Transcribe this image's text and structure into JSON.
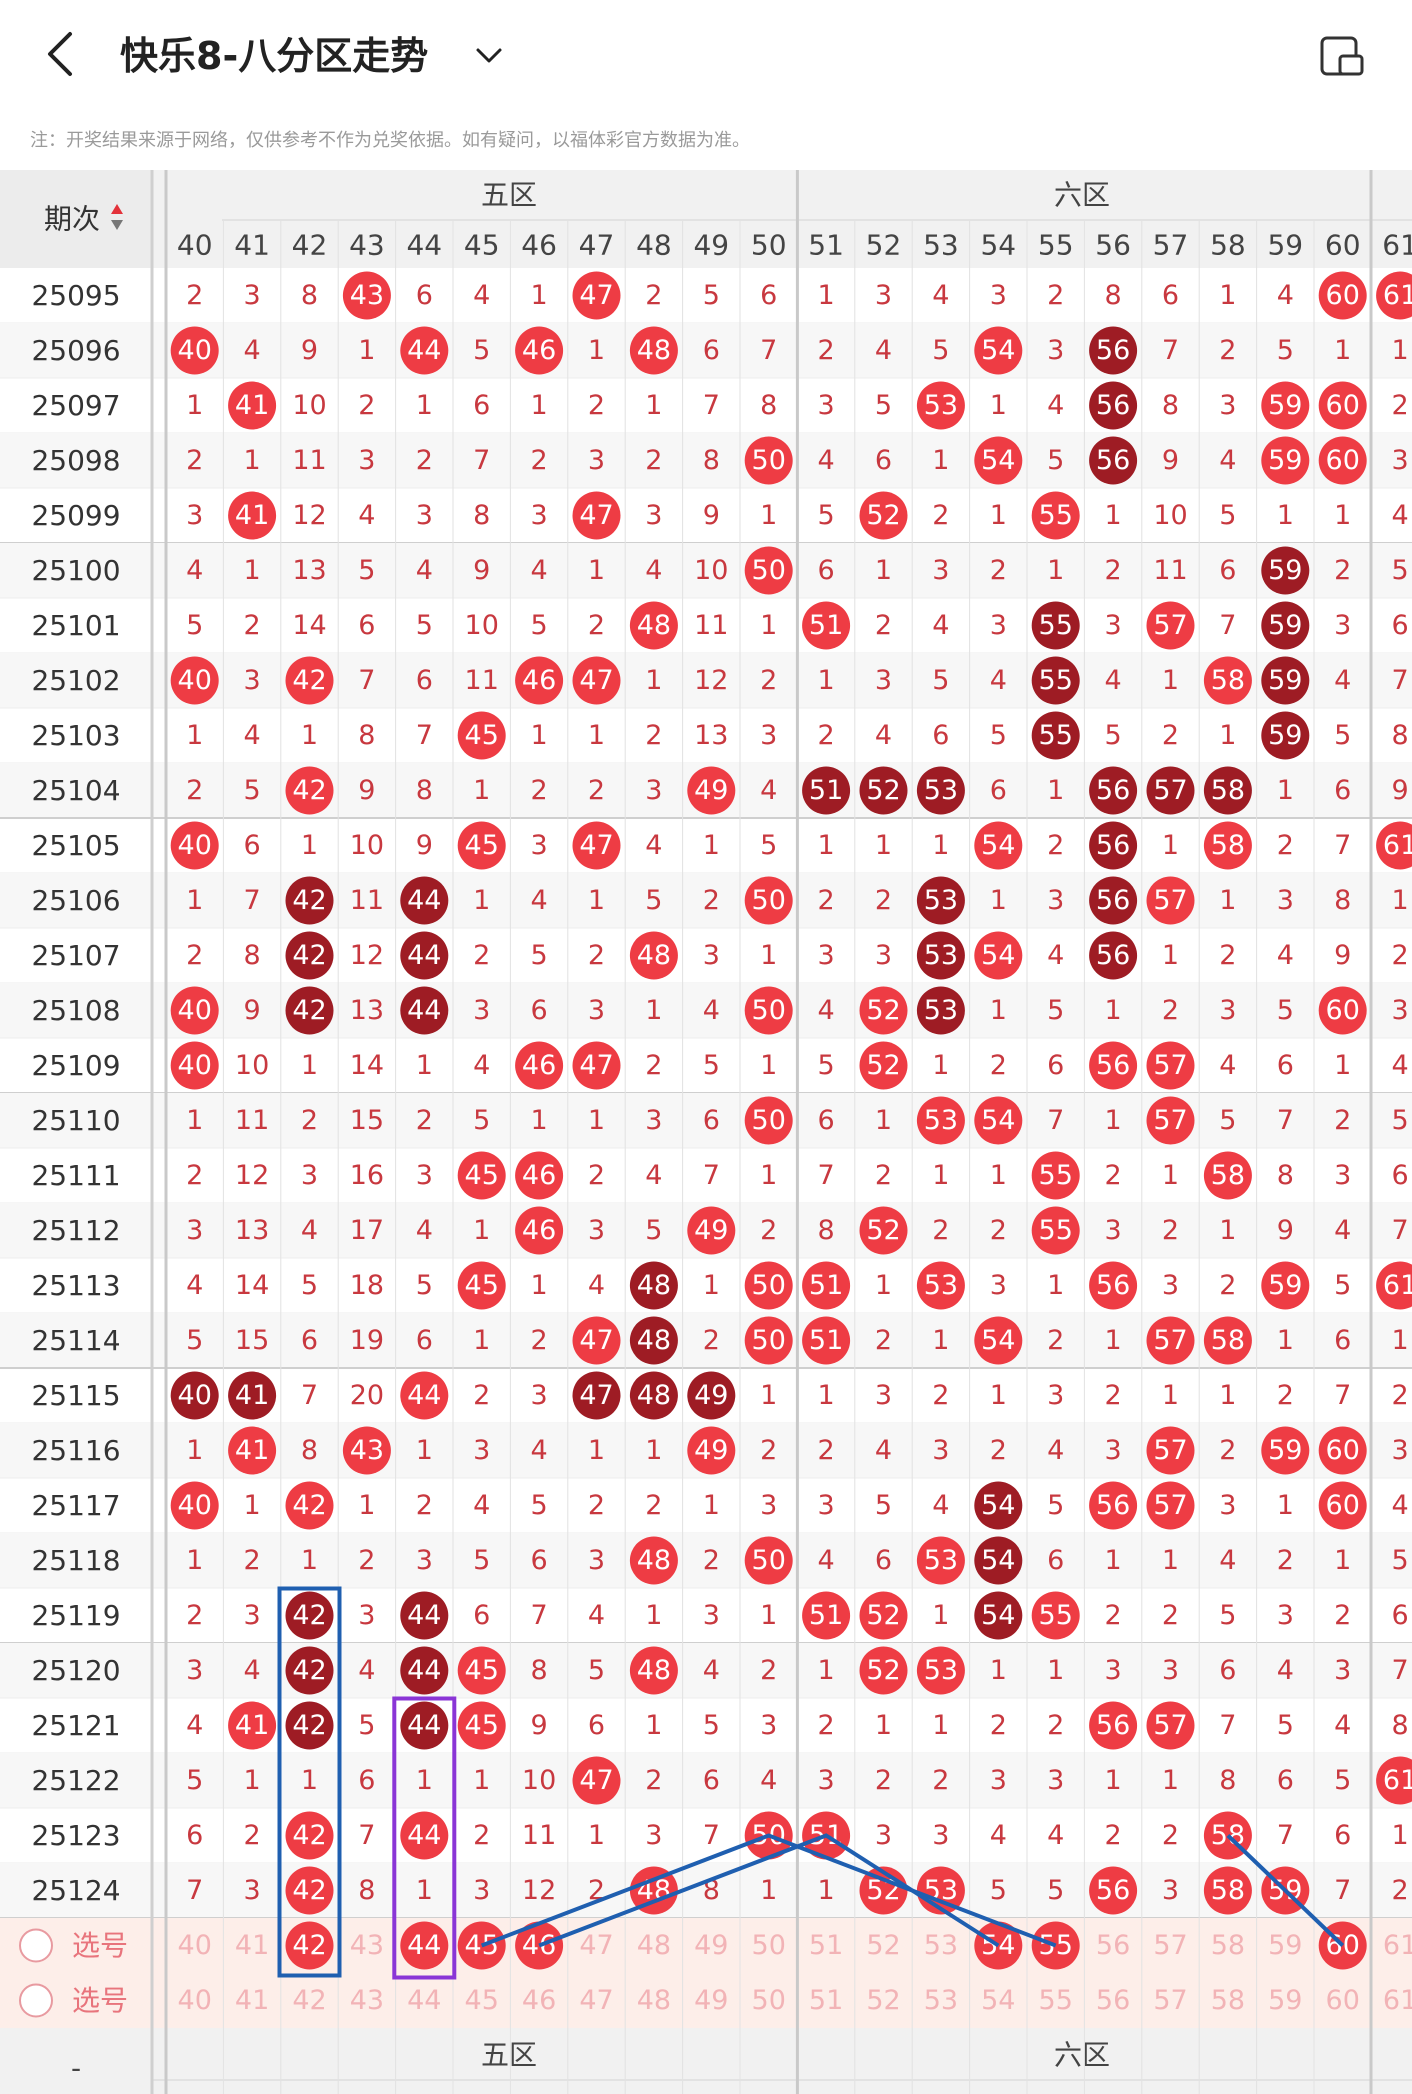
{
  "header": {
    "title": "快乐8-八分区走势",
    "note": "注：开奖结果来源于网络，仅供参考不作为兑奖依据。如有疑问，以福体彩官方数据为准。"
  },
  "table": {
    "period_header": "期次",
    "zone_labels": [
      "五区",
      "六区"
    ],
    "numbers": [
      40,
      41,
      42,
      43,
      44,
      45,
      46,
      47,
      48,
      49,
      50,
      51,
      52,
      53,
      54,
      55,
      56,
      57,
      58,
      59,
      60,
      61
    ],
    "rows": [
      {
        "p": "25095",
        "v": [
          2,
          3,
          8,
          43,
          6,
          4,
          1,
          47,
          2,
          5,
          6,
          1,
          3,
          4,
          3,
          2,
          8,
          6,
          1,
          4,
          60,
          61
        ]
      },
      {
        "p": "25096",
        "v": [
          40,
          4,
          9,
          1,
          44,
          5,
          46,
          1,
          48,
          6,
          7,
          2,
          4,
          5,
          54,
          3,
          56,
          7,
          2,
          5,
          1,
          1
        ]
      },
      {
        "p": "25097",
        "v": [
          1,
          41,
          10,
          2,
          1,
          6,
          1,
          2,
          1,
          7,
          8,
          3,
          5,
          53,
          1,
          4,
          56,
          8,
          3,
          59,
          60,
          2
        ]
      },
      {
        "p": "25098",
        "v": [
          2,
          1,
          11,
          3,
          2,
          7,
          2,
          3,
          2,
          8,
          50,
          4,
          6,
          1,
          54,
          5,
          56,
          9,
          4,
          59,
          60,
          3
        ]
      },
      {
        "p": "25099",
        "v": [
          3,
          41,
          12,
          4,
          3,
          8,
          3,
          47,
          3,
          9,
          1,
          5,
          52,
          2,
          1,
          55,
          1,
          10,
          5,
          1,
          1,
          4
        ]
      },
      {
        "p": "25100",
        "v": [
          4,
          1,
          13,
          5,
          4,
          9,
          4,
          1,
          4,
          10,
          50,
          6,
          1,
          3,
          2,
          1,
          2,
          11,
          6,
          59,
          2,
          5
        ]
      },
      {
        "p": "25101",
        "v": [
          5,
          2,
          14,
          6,
          5,
          10,
          5,
          2,
          48,
          11,
          1,
          51,
          2,
          4,
          3,
          55,
          3,
          57,
          7,
          59,
          3,
          6
        ]
      },
      {
        "p": "25102",
        "v": [
          40,
          3,
          42,
          7,
          6,
          11,
          46,
          47,
          1,
          12,
          2,
          1,
          3,
          5,
          4,
          55,
          4,
          1,
          58,
          59,
          4,
          7
        ]
      },
      {
        "p": "25103",
        "v": [
          1,
          4,
          1,
          8,
          7,
          45,
          1,
          1,
          2,
          13,
          3,
          2,
          4,
          6,
          5,
          55,
          5,
          2,
          1,
          59,
          5,
          8
        ]
      },
      {
        "p": "25104",
        "v": [
          2,
          5,
          42,
          9,
          8,
          1,
          2,
          2,
          3,
          49,
          4,
          51,
          52,
          53,
          6,
          1,
          56,
          57,
          58,
          1,
          6,
          9
        ]
      },
      {
        "p": "25105",
        "v": [
          40,
          6,
          1,
          10,
          9,
          45,
          3,
          47,
          4,
          1,
          5,
          1,
          1,
          1,
          54,
          2,
          56,
          1,
          58,
          2,
          7,
          61
        ]
      },
      {
        "p": "25106",
        "v": [
          1,
          7,
          42,
          11,
          44,
          1,
          4,
          1,
          5,
          2,
          50,
          2,
          2,
          53,
          1,
          3,
          56,
          57,
          1,
          3,
          8,
          1
        ]
      },
      {
        "p": "25107",
        "v": [
          2,
          8,
          42,
          12,
          44,
          2,
          5,
          2,
          48,
          3,
          1,
          3,
          3,
          53,
          54,
          4,
          56,
          1,
          2,
          4,
          9,
          2
        ]
      },
      {
        "p": "25108",
        "v": [
          40,
          9,
          42,
          13,
          44,
          3,
          6,
          3,
          1,
          4,
          50,
          4,
          52,
          53,
          1,
          5,
          1,
          2,
          3,
          5,
          60,
          3
        ]
      },
      {
        "p": "25109",
        "v": [
          40,
          10,
          1,
          14,
          1,
          4,
          46,
          47,
          2,
          5,
          1,
          5,
          52,
          1,
          2,
          6,
          56,
          57,
          4,
          6,
          1,
          4
        ]
      },
      {
        "p": "25110",
        "v": [
          1,
          11,
          2,
          15,
          2,
          5,
          1,
          1,
          3,
          6,
          50,
          6,
          1,
          53,
          54,
          7,
          1,
          57,
          5,
          7,
          2,
          5
        ]
      },
      {
        "p": "25111",
        "v": [
          2,
          12,
          3,
          16,
          3,
          45,
          46,
          2,
          4,
          7,
          1,
          7,
          2,
          1,
          1,
          55,
          2,
          1,
          58,
          8,
          3,
          6
        ]
      },
      {
        "p": "25112",
        "v": [
          3,
          13,
          4,
          17,
          4,
          1,
          46,
          3,
          5,
          49,
          2,
          8,
          52,
          2,
          2,
          55,
          3,
          2,
          1,
          9,
          4,
          7
        ]
      },
      {
        "p": "25113",
        "v": [
          4,
          14,
          5,
          18,
          5,
          45,
          1,
          4,
          48,
          1,
          50,
          51,
          1,
          53,
          3,
          1,
          56,
          3,
          2,
          59,
          5,
          61
        ]
      },
      {
        "p": "25114",
        "v": [
          5,
          15,
          6,
          19,
          6,
          1,
          2,
          47,
          48,
          2,
          50,
          51,
          2,
          1,
          54,
          2,
          1,
          57,
          58,
          1,
          6,
          1
        ]
      },
      {
        "p": "25115",
        "v": [
          40,
          41,
          7,
          20,
          44,
          2,
          3,
          47,
          48,
          49,
          1,
          1,
          3,
          2,
          1,
          3,
          2,
          1,
          1,
          2,
          7,
          2
        ]
      },
      {
        "p": "25116",
        "v": [
          1,
          41,
          8,
          43,
          1,
          3,
          4,
          1,
          1,
          49,
          2,
          2,
          4,
          3,
          2,
          4,
          3,
          57,
          2,
          59,
          60,
          3
        ]
      },
      {
        "p": "25117",
        "v": [
          40,
          1,
          42,
          1,
          2,
          4,
          5,
          2,
          2,
          1,
          3,
          3,
          5,
          4,
          54,
          5,
          56,
          57,
          3,
          1,
          60,
          4
        ]
      },
      {
        "p": "25118",
        "v": [
          1,
          2,
          1,
          2,
          3,
          5,
          6,
          3,
          48,
          2,
          50,
          4,
          6,
          53,
          54,
          6,
          1,
          1,
          4,
          2,
          1,
          5
        ]
      },
      {
        "p": "25119",
        "v": [
          2,
          3,
          42,
          3,
          44,
          6,
          7,
          4,
          1,
          3,
          1,
          51,
          52,
          1,
          54,
          55,
          2,
          2,
          5,
          3,
          2,
          6
        ]
      },
      {
        "p": "25120",
        "v": [
          3,
          4,
          42,
          4,
          44,
          45,
          8,
          5,
          48,
          4,
          2,
          1,
          52,
          53,
          1,
          1,
          3,
          3,
          6,
          4,
          3,
          7
        ]
      },
      {
        "p": "25121",
        "v": [
          4,
          41,
          42,
          5,
          44,
          45,
          9,
          6,
          1,
          5,
          3,
          2,
          1,
          1,
          2,
          2,
          56,
          57,
          7,
          5,
          4,
          8
        ]
      },
      {
        "p": "25122",
        "v": [
          5,
          1,
          1,
          6,
          1,
          1,
          10,
          47,
          2,
          6,
          4,
          3,
          2,
          2,
          3,
          3,
          1,
          1,
          8,
          6,
          5,
          61
        ]
      },
      {
        "p": "25123",
        "v": [
          6,
          2,
          42,
          7,
          44,
          2,
          11,
          1,
          3,
          7,
          50,
          51,
          3,
          3,
          4,
          4,
          2,
          2,
          58,
          7,
          6,
          1
        ]
      },
      {
        "p": "25124",
        "v": [
          7,
          3,
          42,
          8,
          1,
          3,
          12,
          2,
          48,
          8,
          1,
          1,
          52,
          53,
          5,
          5,
          56,
          3,
          58,
          59,
          7,
          2
        ]
      }
    ],
    "dark_balls": [
      "25104-51",
      "25104-52",
      "25104-53",
      "25104-56",
      "25104-57",
      "25104-58",
      "25105-56",
      "25106-42",
      "25106-44",
      "25106-53",
      "25106-56",
      "25107-42",
      "25107-44",
      "25107-53",
      "25107-56",
      "25108-42",
      "25108-44",
      "25108-53",
      "25101-55",
      "25102-55",
      "25103-55",
      "25100-59",
      "25101-59",
      "25102-59",
      "25103-59",
      "25096-56",
      "25097-56",
      "25098-56",
      "25113-48",
      "25114-48",
      "25115-40",
      "25115-41",
      "25115-47",
      "25115-48",
      "25115-49",
      "25117-54",
      "25118-54",
      "25119-54",
      "25119-42",
      "25120-42",
      "25121-42",
      "25119-44",
      "25120-44",
      "25121-44"
    ],
    "select_rows": [
      {
        "label": "选号",
        "selected": [
          42,
          44,
          45,
          46,
          54,
          55,
          60
        ]
      },
      {
        "label": "选号",
        "selected": []
      }
    ]
  },
  "colors": {
    "ball_red": "#ee3c44",
    "ball_dark": "#9e1c24",
    "number_text": "#c8383f",
    "blue_line": "#1f5fb0",
    "purple_box": "#8a35d6"
  }
}
